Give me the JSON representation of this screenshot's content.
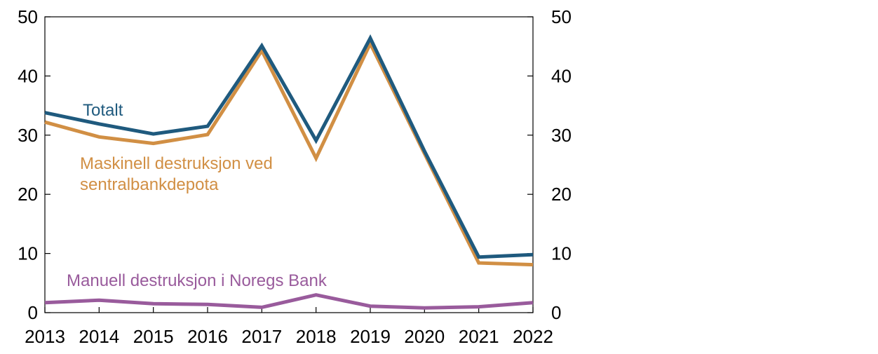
{
  "chart_data": {
    "type": "line",
    "x": [
      "2013",
      "2014",
      "2015",
      "2016",
      "2017",
      "2018",
      "2019",
      "2020",
      "2021",
      "2022"
    ],
    "ylim": [
      0,
      50
    ],
    "yticks": [
      0,
      10,
      20,
      30,
      40,
      50
    ],
    "grid": false,
    "secondary_y_axis": true,
    "series": [
      {
        "name": "Totalt",
        "label_lines": [
          "Totalt"
        ],
        "color": "#1F5A7E",
        "values": [
          33.8,
          31.9,
          30.2,
          31.5,
          45.1,
          29.1,
          46.4,
          27.3,
          9.4,
          9.8
        ]
      },
      {
        "name": "Maskinell destruksjon ved sentralbankdepota",
        "label_lines": [
          "Maskinell destruksjon ved",
          "sentralbankdepota"
        ],
        "color": "#D18F44",
        "values": [
          32.2,
          29.7,
          28.6,
          30.1,
          44.3,
          26.1,
          45.5,
          26.9,
          8.4,
          8.1
        ]
      },
      {
        "name": "Manuell destruksjon i Noregs Bank",
        "label_lines": [
          "Manuell destruksjon i Noregs Bank"
        ],
        "color": "#995B9C",
        "values": [
          1.7,
          2.1,
          1.5,
          1.4,
          0.9,
          3.0,
          1.1,
          0.8,
          1.0,
          1.7
        ]
      }
    ]
  }
}
